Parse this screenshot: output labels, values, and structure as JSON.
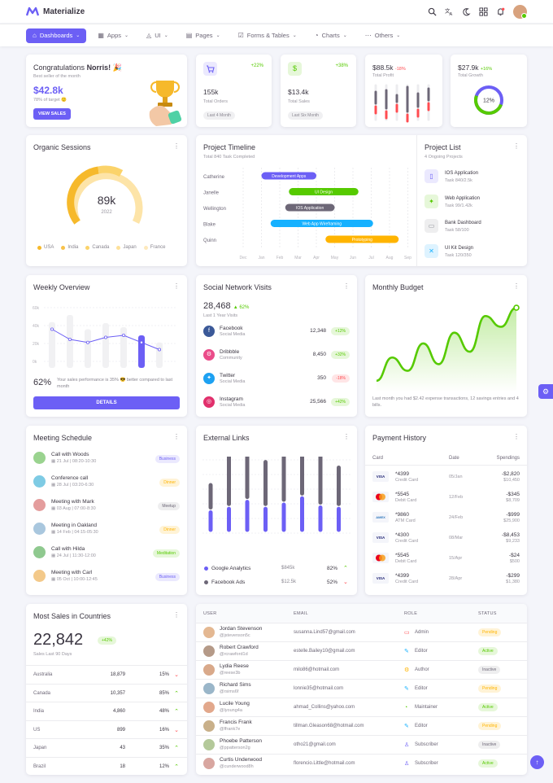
{
  "app": {
    "name": "Materialize"
  },
  "colors": {
    "primary": "#6c5ff5",
    "success": "#56ca00",
    "warning": "#ffb400",
    "danger": "#ff4c51",
    "info": "#16b1ff",
    "secondary": "#8a8d93"
  },
  "nav": [
    {
      "label": "Dashboards",
      "icon": "home-icon",
      "active": true
    },
    {
      "label": "Apps",
      "icon": "grid-icon"
    },
    {
      "label": "UI",
      "icon": "shapes-icon"
    },
    {
      "label": "Pages",
      "icon": "file-icon"
    },
    {
      "label": "Forms & Tables",
      "icon": "checkbox-icon"
    },
    {
      "label": "Charts",
      "icon": "chart-icon"
    },
    {
      "label": "Others",
      "icon": "dots-icon"
    }
  ],
  "congrats": {
    "greeting": "Congratulations",
    "name": "Norris!",
    "emoji": "🎉",
    "subtitle": "Best seller of the month",
    "amount": "$42.8k",
    "target": "78% of target",
    "target_emoji": "🙂",
    "button": "VIEW SALES"
  },
  "stats": [
    {
      "value": "155k",
      "label": "Total Orders",
      "change": "+22%",
      "chip": "Last 4 Month",
      "icon": "cart-icon"
    },
    {
      "value": "$13.4k",
      "label": "Total Sales",
      "change": "+38%",
      "chip": "Last Six Month",
      "icon": "dollar-icon"
    }
  ],
  "profit": {
    "value": "$88.5k",
    "change": "-18%",
    "label": "Total Profit"
  },
  "growth": {
    "value": "$27.9k",
    "change": "+16%",
    "label": "Total Growth",
    "percent": "12%",
    "fraction": 0.12
  },
  "organic": {
    "title": "Organic Sessions",
    "value": "89k",
    "year": "2022",
    "legend": [
      "USA",
      "India",
      "Canada",
      "Japan",
      "France"
    ]
  },
  "timeline": {
    "title": "Project Timeline",
    "subtitle": "Total 840 Task Completed",
    "rows": [
      {
        "name": "Catherine",
        "task": "Development Apps",
        "start": 1,
        "end": 4
      },
      {
        "name": "Janelle",
        "task": "UI Design",
        "start": 2.5,
        "end": 6.3
      },
      {
        "name": "Wellington",
        "task": "IOS Application",
        "start": 2.3,
        "end": 5
      },
      {
        "name": "Blake",
        "task": "Web App Wireframing",
        "start": 1.5,
        "end": 7.1
      },
      {
        "name": "Quinn",
        "task": "Prototyping",
        "start": 4.5,
        "end": 8.5
      }
    ],
    "months": [
      "Dec",
      "Jan",
      "Feb",
      "Mar",
      "Apr",
      "May",
      "Jun",
      "Jul",
      "Aug",
      "Sep"
    ]
  },
  "project_list": {
    "title": "Project List",
    "subtitle": "4 Ongoing Projects",
    "items": [
      {
        "name": "IOS Application",
        "task": "Task 840/2.5k"
      },
      {
        "name": "Web Application",
        "task": "Task 99/1.42k"
      },
      {
        "name": "Bank Dashboard",
        "task": "Task 58/100"
      },
      {
        "name": "UI Kit Design",
        "task": "Task 120/350"
      }
    ]
  },
  "weekly": {
    "title": "Weekly Overview",
    "yticks": [
      "60k",
      "40k",
      "20k",
      "0k"
    ],
    "bars": [
      45,
      52,
      38,
      44,
      40,
      32,
      25
    ],
    "line": [
      38,
      28,
      25,
      30,
      32,
      25,
      18
    ],
    "percent": "62%",
    "text": "Your sales performance is 35% 😎 better compared to last month",
    "button": "DETAILS"
  },
  "social": {
    "title": "Social Network Visits",
    "value": "28,468",
    "change": "62%",
    "subtitle": "Last 1 Year Visits",
    "items": [
      {
        "name": "Facebook",
        "type": "Social Media",
        "value": "12,348",
        "change": "+12%"
      },
      {
        "name": "Dribbble",
        "type": "Community",
        "value": "8,450",
        "change": "+32%"
      },
      {
        "name": "Twitter",
        "type": "Social Media",
        "value": "350",
        "change": "-18%"
      },
      {
        "name": "Instagram",
        "type": "Social Media",
        "value": "25,566",
        "change": "+42%"
      }
    ]
  },
  "budget": {
    "title": "Monthly Budget",
    "values": [
      10,
      38,
      22,
      55,
      30,
      68,
      45,
      88,
      75,
      98
    ],
    "text": "Last month you had $2.42 expense transactions, 12 savings entries and 4 bills."
  },
  "meetings": {
    "title": "Meeting Schedule",
    "items": [
      {
        "title": "Call with Woods",
        "time": "21 Jul | 08:20-10:30",
        "tag": "Business"
      },
      {
        "title": "Conference call",
        "time": "28 Jul | 03:20-6:30",
        "tag": "Dinner"
      },
      {
        "title": "Meeting with Mark",
        "time": "03 Aug | 07:00-8:30",
        "tag": "Meetup"
      },
      {
        "title": "Meeting in Oakland",
        "time": "14 Feb | 04:15-05:30",
        "tag": "Dinner"
      },
      {
        "title": "Call with Hilda",
        "time": "24 Jul | 11:30-12:00",
        "tag": "Meditation"
      },
      {
        "title": "Meeting with Carl",
        "time": "05 Oct | 10:00-12:45",
        "tag": "Business"
      }
    ]
  },
  "external": {
    "title": "External Links",
    "pairs": [
      [
        32,
        25
      ],
      [
        82,
        30
      ],
      [
        85,
        40
      ],
      [
        60,
        30
      ],
      [
        64,
        36
      ],
      [
        78,
        45
      ],
      [
        90,
        32
      ],
      [
        52,
        30
      ]
    ],
    "rows": [
      {
        "name": "Google Analytics",
        "amount": "$845k",
        "percent": "82%",
        "dir": "up"
      },
      {
        "name": "Facebook Ads",
        "amount": "$12.5k",
        "percent": "52%",
        "dir": "down"
      }
    ]
  },
  "payment": {
    "title": "Payment History",
    "headers": [
      "Card",
      "Date",
      "Spendings"
    ],
    "rows": [
      {
        "brand": "VISA",
        "num": "*4399",
        "type": "Credit Card",
        "date": "05/Jan",
        "amt": "-$2,820",
        "bal": "$10,450"
      },
      {
        "brand": "MC",
        "num": "*5545",
        "type": "Debit Card",
        "date": "12/Feb",
        "amt": "-$345",
        "bal": "$8,709"
      },
      {
        "brand": "AMEX",
        "num": "*9860",
        "type": "ATM Card",
        "date": "24/Feb",
        "amt": "-$999",
        "bal": "$25,900"
      },
      {
        "brand": "VISA",
        "num": "*4300",
        "type": "Credit Card",
        "date": "08/Mar",
        "amt": "-$8,453",
        "bal": "$9,233"
      },
      {
        "brand": "MC",
        "num": "*5545",
        "type": "Debit Card",
        "date": "15/Apr",
        "amt": "-$24",
        "bal": "$500"
      },
      {
        "brand": "VISA",
        "num": "*4399",
        "type": "Credit Card",
        "date": "28/Apr",
        "amt": "-$299",
        "bal": "$1,380"
      }
    ]
  },
  "countries": {
    "title": "Most Sales in Countries",
    "value": "22,842",
    "change": "+42%",
    "subtitle": "Sales Last 90 Days",
    "rows": [
      {
        "name": "Australia",
        "value": "18,879",
        "percent": "15%",
        "dir": "down"
      },
      {
        "name": "Canada",
        "value": "10,357",
        "percent": "85%",
        "dir": "up"
      },
      {
        "name": "India",
        "value": "4,860",
        "percent": "48%",
        "dir": "up"
      },
      {
        "name": "US",
        "value": "899",
        "percent": "16%",
        "dir": "down"
      },
      {
        "name": "Japan",
        "value": "43",
        "percent": "35%",
        "dir": "up"
      },
      {
        "name": "Brazil",
        "value": "18",
        "percent": "12%",
        "dir": "up"
      }
    ]
  },
  "users": {
    "headers": [
      "USER",
      "EMAIL",
      "ROLE",
      "STATUS"
    ],
    "rows": [
      {
        "name": "Jordan Stevenson",
        "handle": "@jstevenson5c",
        "email": "susanna.Lind57@gmail.com",
        "role": "Admin",
        "status": "Pending"
      },
      {
        "name": "Robert Crawford",
        "handle": "@rcrawford1d",
        "email": "estelle.Bailey10@gmail.com",
        "role": "Editor",
        "status": "Active"
      },
      {
        "name": "Lydia Reese",
        "handle": "@reese3b",
        "email": "milo86@hotmail.com",
        "role": "Author",
        "status": "Inactive"
      },
      {
        "name": "Richard Sims",
        "handle": "@rsims6f",
        "email": "lonnie35@hotmail.com",
        "role": "Editor",
        "status": "Pending"
      },
      {
        "name": "Lucile Young",
        "handle": "@lyoung4a",
        "email": "ahmad_Collins@yahoo.com",
        "role": "Maintainer",
        "status": "Active"
      },
      {
        "name": "Francis Frank",
        "handle": "@ffrank7e",
        "email": "tillman.Gleason68@hotmail.com",
        "role": "Editor",
        "status": "Pending"
      },
      {
        "name": "Phoebe Patterson",
        "handle": "@ppatterson2g",
        "email": "otho21@gmail.com",
        "role": "Subscriber",
        "status": "Inactive"
      },
      {
        "name": "Curtis Underwood",
        "handle": "@cunderwood8h",
        "email": "florencio.Little@hotmail.com",
        "role": "Subscriber",
        "status": "Active"
      }
    ]
  }
}
